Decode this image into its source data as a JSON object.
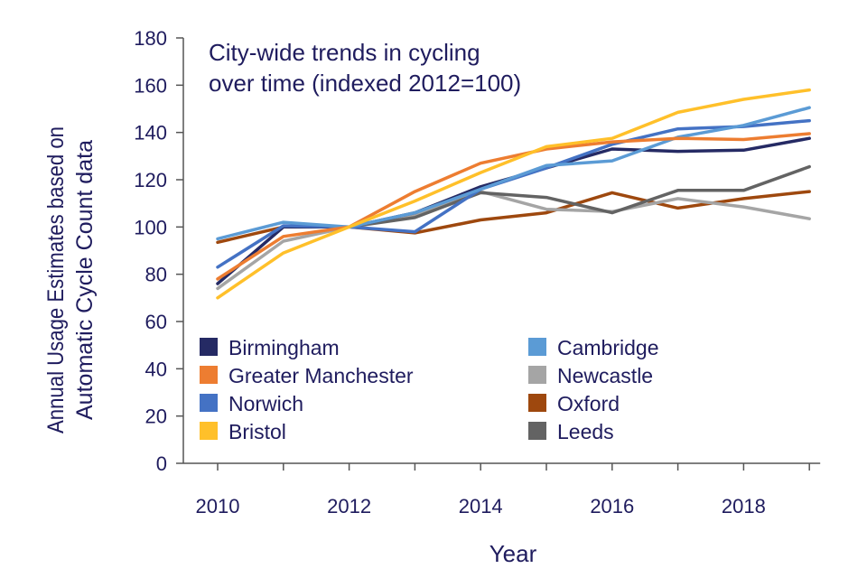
{
  "chart_data": {
    "type": "line",
    "title": [
      "City-wide trends in cycling",
      "over time (indexed 2012=100)"
    ],
    "xlabel": "Year",
    "ylabel": [
      "Annual Usage Estimates based on",
      "Automatic Cycle Count data"
    ],
    "x": [
      2010,
      2011,
      2012,
      2013,
      2014,
      2015,
      2016,
      2017,
      2018,
      2019
    ],
    "x_tick_labels": [
      "2010",
      "2012",
      "2014",
      "2016",
      "2018"
    ],
    "x_tick_label_values": [
      2010,
      2012,
      2014,
      2016,
      2018
    ],
    "y_ticks": [
      0,
      20,
      40,
      60,
      80,
      100,
      120,
      140,
      160,
      180
    ],
    "ylim": [
      0,
      180
    ],
    "grid": false,
    "legend_position": "bottom-left inside plot, two columns",
    "series": [
      {
        "name": "Birmingham",
        "color": "#252A64",
        "values": [
          76,
          100,
          100,
          106,
          117,
          125,
          133,
          132,
          132.5,
          137.5
        ]
      },
      {
        "name": "Greater Manchester",
        "color": "#ED7D31",
        "values": [
          78,
          96,
          100,
          115,
          127,
          133,
          136,
          137.5,
          137,
          139.5
        ]
      },
      {
        "name": "Norwich",
        "color": "#4472C4",
        "values": [
          83,
          100.5,
          100,
          98,
          116,
          125,
          135,
          141.5,
          142.5,
          145
        ]
      },
      {
        "name": "Bristol",
        "color": "#FFC02A",
        "values": [
          70,
          89,
          100,
          111,
          123,
          134,
          137.5,
          148.5,
          154,
          158
        ]
      },
      {
        "name": "Cambridge",
        "color": "#5B9BD5",
        "values": [
          95,
          102,
          100,
          106,
          116,
          126,
          128,
          138,
          143,
          150.5
        ]
      },
      {
        "name": "Newcastle",
        "color": "#A5A5A5",
        "values": [
          74,
          94,
          100,
          105,
          115,
          107.5,
          106.5,
          112,
          108.5,
          103.5
        ]
      },
      {
        "name": "Oxford",
        "color": "#9E480E",
        "values": [
          93.5,
          100,
          100,
          97.5,
          103,
          106,
          114.5,
          108,
          112,
          115
        ]
      },
      {
        "name": "Leeds",
        "color": "#636363",
        "values": [
          null,
          null,
          100,
          104,
          114.5,
          112.5,
          106,
          115.5,
          115.5,
          125.5
        ]
      }
    ]
  }
}
